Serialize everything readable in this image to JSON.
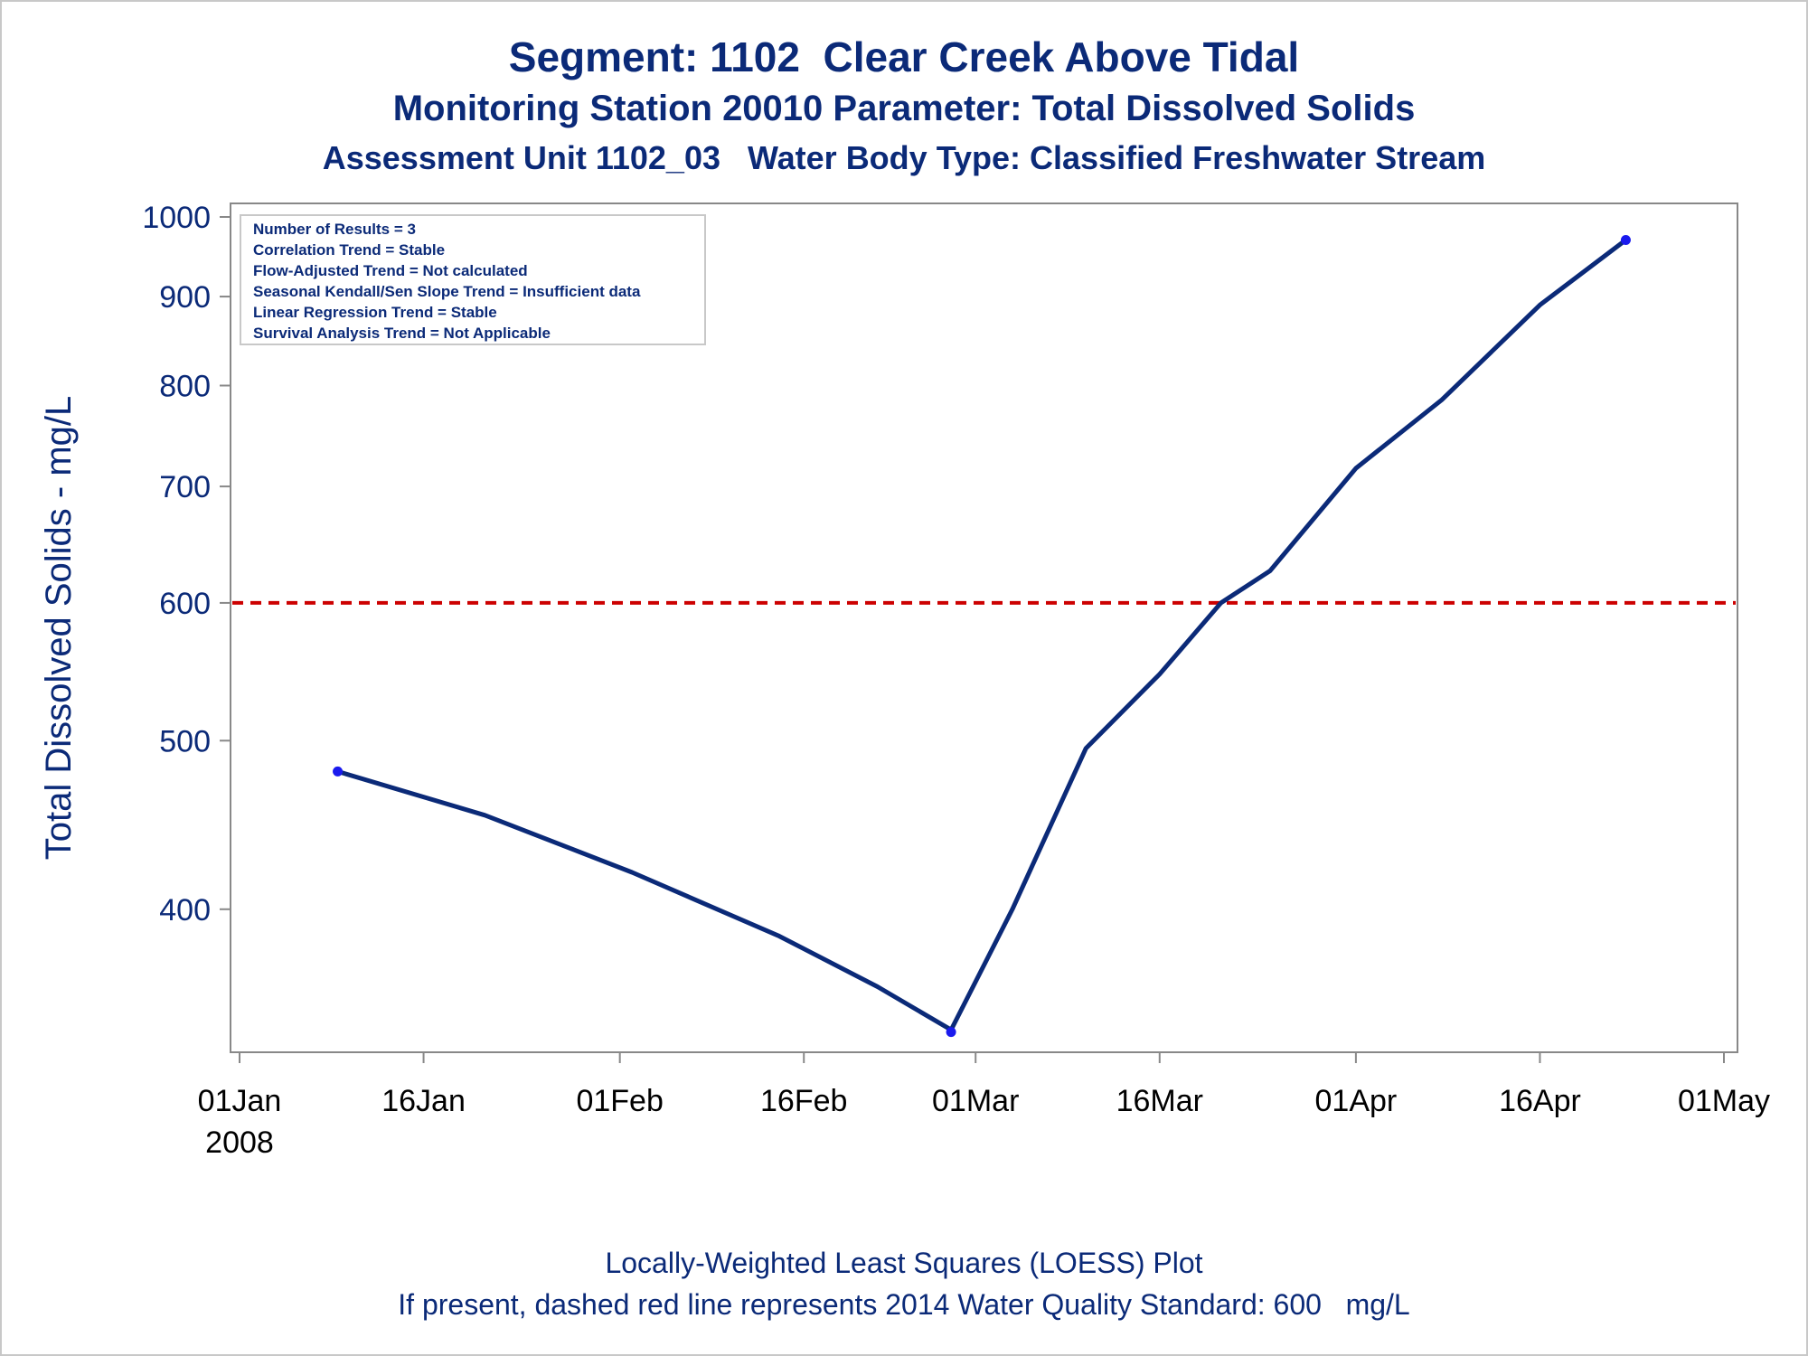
{
  "titles": {
    "line1": "Segment: 1102  Clear Creek Above Tidal",
    "line2": "Monitoring Station 20010 Parameter: Total Dissolved Solids",
    "line3": "Assessment Unit 1102_03   Water Body Type: Classified Freshwater Stream"
  },
  "footnotes": {
    "line1": "Locally-Weighted Least Squares (LOESS) Plot",
    "line2": "If present, dashed red line represents 2014 Water Quality Standard: 600   mg/L"
  },
  "chart_data": {
    "type": "line",
    "ylabel": "Total Dissolved Solids - mg/L",
    "xlabel": "",
    "yscale": "log",
    "ylim": [
      335,
      1000
    ],
    "xlim": [
      "2008-01-01",
      "2008-05-01"
    ],
    "yticks": [
      400,
      500,
      600,
      700,
      800,
      900,
      1000
    ],
    "xticks": [
      {
        "date": "2008-01-01",
        "label": "01Jan",
        "sublabel": "2008"
      },
      {
        "date": "2008-01-16",
        "label": "16Jan"
      },
      {
        "date": "2008-02-01",
        "label": "01Feb"
      },
      {
        "date": "2008-02-16",
        "label": "16Feb"
      },
      {
        "date": "2008-03-01",
        "label": "01Mar"
      },
      {
        "date": "2008-03-16",
        "label": "16Mar"
      },
      {
        "date": "2008-04-01",
        "label": "01Apr"
      },
      {
        "date": "2008-04-16",
        "label": "16Apr"
      },
      {
        "date": "2008-05-01",
        "label": "01May"
      }
    ],
    "points": [
      {
        "x": "2008-01-09",
        "y": 480
      },
      {
        "x": "2008-02-28",
        "y": 340
      },
      {
        "x": "2008-04-23",
        "y": 970
      }
    ],
    "loess_curve": [
      {
        "x": "2008-01-09",
        "y": 480
      },
      {
        "x": "2008-01-21",
        "y": 453
      },
      {
        "x": "2008-02-02",
        "y": 420
      },
      {
        "x": "2008-02-14",
        "y": 386
      },
      {
        "x": "2008-02-22",
        "y": 361
      },
      {
        "x": "2008-02-28",
        "y": 341
      },
      {
        "x": "2008-03-04",
        "y": 400
      },
      {
        "x": "2008-03-10",
        "y": 495
      },
      {
        "x": "2008-03-16",
        "y": 546
      },
      {
        "x": "2008-03-21",
        "y": 600
      },
      {
        "x": "2008-03-25",
        "y": 626
      },
      {
        "x": "2008-04-01",
        "y": 717
      },
      {
        "x": "2008-04-08",
        "y": 785
      },
      {
        "x": "2008-04-16",
        "y": 890
      },
      {
        "x": "2008-04-23",
        "y": 970
      }
    ],
    "reference_line": {
      "y": 600,
      "color": "#cc0000",
      "style": "dashed"
    },
    "legend_box": {
      "placement": "top-left",
      "lines": [
        "Number of Results = 3",
        "Correlation Trend = Stable",
        "Flow-Adjusted Trend = Not calculated",
        "Seasonal Kendall/Sen Slope Trend = Insufficient data",
        "Linear Regression Trend = Stable",
        "Survival Analysis Trend = Not Applicable"
      ]
    },
    "colors": {
      "line": "#0b2a78",
      "points": "#1a1aee",
      "text": "#0b2a78",
      "axis": "#888888",
      "reference": "#cc0000"
    },
    "grid": false
  }
}
